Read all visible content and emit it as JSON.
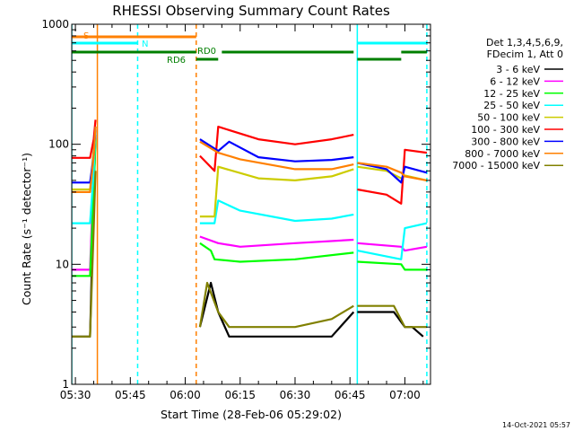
{
  "chart_data": {
    "type": "line",
    "title": "RHESSI Observing Summary Count Rates",
    "xlabel": "Start Time (28-Feb-06 05:29:02)",
    "ylabel": "Count Rate (s⁻¹ detector⁻¹)",
    "yscale": "log",
    "ylim": [
      1,
      1000
    ],
    "xlim": [
      "05:29",
      "07:07"
    ],
    "x_ticks": [
      "05:30",
      "05:45",
      "06:00",
      "06:15",
      "06:30",
      "06:45",
      "07:00"
    ],
    "y_ticks": [
      "1",
      "10",
      "100",
      "1000"
    ],
    "timestamp": "14-Oct-2021 05:57",
    "legend_header": [
      "Det 1,3,4,5,6,9,",
      "FDecim 1, Att 0"
    ],
    "legend_position": "top-right",
    "annotations": {
      "S": {
        "label": "S",
        "color": "#ff8000",
        "start": "05:29",
        "end": "06:03"
      },
      "N": {
        "label": "N",
        "color": "#00ffff",
        "segments": [
          [
            "05:29",
            "05:47"
          ],
          [
            "06:47",
            "07:06"
          ]
        ]
      },
      "RD0": {
        "label": "RD0",
        "color": "#007f00",
        "segments": [
          [
            "05:29",
            "06:03"
          ],
          [
            "06:10",
            "06:46"
          ],
          [
            "06:59",
            "07:06"
          ]
        ]
      },
      "RD6": {
        "label": "RD6",
        "color": "#007f00",
        "segments": [
          [
            "06:03",
            "06:09"
          ],
          [
            "06:47",
            "06:59"
          ]
        ]
      }
    },
    "vlines": [
      {
        "time": "05:29",
        "color": "#00ffff",
        "style": "solid"
      },
      {
        "time": "05:36",
        "color": "#ff8000",
        "style": "solid"
      },
      {
        "time": "05:47",
        "color": "#00ffff",
        "style": "dashed"
      },
      {
        "time": "06:03",
        "color": "#ff8000",
        "style": "dashed"
      },
      {
        "time": "06:47",
        "color": "#00ffff",
        "style": "solid"
      },
      {
        "time": "07:06",
        "color": "#00ffff",
        "style": "dashed"
      }
    ],
    "series": [
      {
        "name": "3 - 6 keV",
        "color": "#000000",
        "segments": [
          [
            [
              "05:29",
              2.5
            ],
            [
              "05:34",
              2.5
            ],
            [
              "05:35",
              40
            ],
            [
              "05:35.5",
              120
            ]
          ],
          [
            [
              "06:04",
              3
            ],
            [
              "06:07",
              7
            ],
            [
              "06:09",
              4
            ],
            [
              "06:12",
              2.5
            ],
            [
              "06:20",
              2.5
            ],
            [
              "06:40",
              2.5
            ],
            [
              "06:46",
              4
            ]
          ],
          [
            [
              "06:47",
              4
            ],
            [
              "06:57",
              4
            ],
            [
              "07:00",
              3
            ],
            [
              "07:02",
              3
            ],
            [
              "07:05",
              2.5
            ]
          ]
        ]
      },
      {
        "name": "6 - 12 keV",
        "color": "#ff00ff",
        "segments": [
          [
            [
              "05:29",
              9
            ],
            [
              "05:34",
              9
            ],
            [
              "05:35",
              60
            ],
            [
              "05:35.5",
              130
            ]
          ],
          [
            [
              "06:04",
              17
            ],
            [
              "06:09",
              15
            ],
            [
              "06:15",
              14
            ],
            [
              "06:30",
              15
            ],
            [
              "06:46",
              16
            ]
          ],
          [
            [
              "06:47",
              15
            ],
            [
              "06:59",
              14
            ],
            [
              "07:00",
              13
            ],
            [
              "07:06",
              14
            ]
          ]
        ]
      },
      {
        "name": "12 - 25 keV",
        "color": "#00ff00",
        "segments": [
          [
            [
              "05:29",
              8
            ],
            [
              "05:34",
              8
            ],
            [
              "05:35",
              40
            ],
            [
              "05:35.5",
              110
            ]
          ],
          [
            [
              "06:04",
              15
            ],
            [
              "06:07",
              13
            ],
            [
              "06:08",
              11
            ],
            [
              "06:15",
              10.5
            ],
            [
              "06:30",
              11
            ],
            [
              "06:46",
              12.5
            ]
          ],
          [
            [
              "06:47",
              10.5
            ],
            [
              "06:59",
              10
            ],
            [
              "07:00",
              9
            ],
            [
              "07:06",
              9
            ]
          ]
        ]
      },
      {
        "name": "25 - 50 keV",
        "color": "#00ffff",
        "segments": [
          [
            [
              "05:29",
              22
            ],
            [
              "05:34",
              22
            ],
            [
              "05:35",
              60
            ],
            [
              "05:35.5",
              130
            ]
          ],
          [
            [
              "06:04",
              22
            ],
            [
              "06:08",
              22
            ],
            [
              "06:09",
              34
            ],
            [
              "06:15",
              28
            ],
            [
              "06:30",
              23
            ],
            [
              "06:40",
              24
            ],
            [
              "06:46",
              26
            ]
          ],
          [
            [
              "06:47",
              13
            ],
            [
              "06:59",
              11
            ],
            [
              "07:00",
              20
            ],
            [
              "07:06",
              22
            ]
          ]
        ]
      },
      {
        "name": "50 - 100 keV",
        "color": "#cccc00",
        "segments": [
          [
            [
              "05:29",
              42
            ],
            [
              "05:34",
              42
            ],
            [
              "05:35",
              90
            ],
            [
              "05:35.5",
              140
            ]
          ],
          [
            [
              "06:04",
              25
            ],
            [
              "06:08",
              25
            ],
            [
              "06:09",
              65
            ],
            [
              "06:20",
              52
            ],
            [
              "06:30",
              50
            ],
            [
              "06:40",
              54
            ],
            [
              "06:46",
              62
            ]
          ],
          [
            [
              "06:47",
              65
            ],
            [
              "06:55",
              60
            ],
            [
              "06:59",
              52
            ],
            [
              "07:00",
              55
            ],
            [
              "07:06",
              50
            ]
          ]
        ]
      },
      {
        "name": "100 - 300 keV",
        "color": "#ff0000",
        "segments": [
          [
            [
              "05:29",
              77
            ],
            [
              "05:34",
              77
            ],
            [
              "05:35",
              110
            ],
            [
              "05:35.5",
              160
            ]
          ],
          [
            [
              "06:04",
              80
            ],
            [
              "06:08",
              60
            ],
            [
              "06:09",
              140
            ],
            [
              "06:20",
              110
            ],
            [
              "06:30",
              100
            ],
            [
              "06:40",
              110
            ],
            [
              "06:46",
              120
            ]
          ],
          [
            [
              "06:47",
              42
            ],
            [
              "06:55",
              38
            ],
            [
              "06:59",
              32
            ],
            [
              "07:00",
              90
            ],
            [
              "07:06",
              85
            ]
          ]
        ]
      },
      {
        "name": "300 - 800 keV",
        "color": "#0000ff",
        "segments": [
          [
            [
              "05:29",
              48
            ],
            [
              "05:34",
              48
            ],
            [
              "05:35",
              80
            ],
            [
              "05:35.5",
              140
            ]
          ],
          [
            [
              "06:04",
              110
            ],
            [
              "06:09",
              88
            ],
            [
              "06:12",
              105
            ],
            [
              "06:20",
              78
            ],
            [
              "06:30",
              72
            ],
            [
              "06:40",
              74
            ],
            [
              "06:46",
              78
            ]
          ],
          [
            [
              "06:47",
              70
            ],
            [
              "06:55",
              62
            ],
            [
              "06:59",
              48
            ],
            [
              "07:00",
              65
            ],
            [
              "07:06",
              58
            ]
          ]
        ]
      },
      {
        "name": "800 - 7000 keV",
        "color": "#ff8000",
        "segments": [
          [
            [
              "05:29",
              40
            ],
            [
              "05:34",
              40
            ],
            [
              "05:35",
              80
            ],
            [
              "05:35.5",
              140
            ]
          ],
          [
            [
              "06:04",
              105
            ],
            [
              "06:09",
              85
            ],
            [
              "06:15",
              75
            ],
            [
              "06:30",
              62
            ],
            [
              "06:40",
              62
            ],
            [
              "06:46",
              68
            ]
          ],
          [
            [
              "06:47",
              70
            ],
            [
              "06:55",
              65
            ],
            [
              "06:59",
              58
            ],
            [
              "07:00",
              54
            ],
            [
              "07:06",
              50
            ]
          ]
        ]
      },
      {
        "name": "7000 - 15000 keV",
        "color": "#808000",
        "segments": [
          [
            [
              "05:29",
              2.5
            ],
            [
              "05:34",
              2.5
            ],
            [
              "05:35",
              20
            ],
            [
              "05:35.5",
              60
            ]
          ],
          [
            [
              "06:04",
              3
            ],
            [
              "06:06",
              7
            ],
            [
              "06:09",
              4
            ],
            [
              "06:12",
              3
            ],
            [
              "06:30",
              3
            ],
            [
              "06:40",
              3.5
            ],
            [
              "06:46",
              4.5
            ]
          ],
          [
            [
              "06:47",
              4.5
            ],
            [
              "06:57",
              4.5
            ],
            [
              "07:00",
              3
            ],
            [
              "07:06",
              3
            ]
          ]
        ]
      }
    ]
  }
}
